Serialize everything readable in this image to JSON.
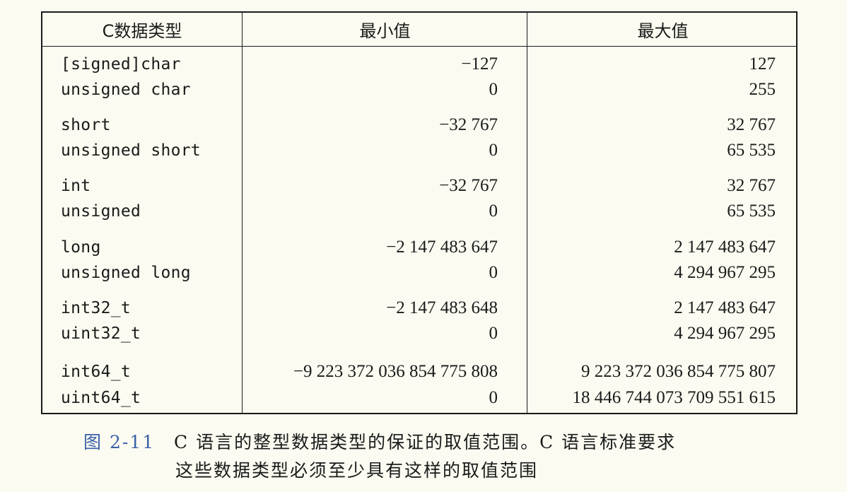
{
  "table": {
    "headers": [
      "C数据类型",
      "最小值",
      "最大值"
    ],
    "groups": [
      [
        {
          "type": "[signed]char",
          "min": "−127",
          "max": "127"
        },
        {
          "type": "unsigned char",
          "min": "0",
          "max": "255"
        }
      ],
      [
        {
          "type": "short",
          "min": "−32 767",
          "max": "32 767"
        },
        {
          "type": "unsigned short",
          "min": "0",
          "max": "65 535"
        }
      ],
      [
        {
          "type": "int",
          "min": "−32 767",
          "max": "32 767"
        },
        {
          "type": "unsigned",
          "min": "0",
          "max": "65 535"
        }
      ],
      [
        {
          "type": "long",
          "min": "−2 147 483 647",
          "max": "2 147 483 647"
        },
        {
          "type": "unsigned long",
          "min": "0",
          "max": "4 294 967 295"
        }
      ],
      [
        {
          "type": "int32_t",
          "min": "−2 147 483 648",
          "max": "2 147 483 647"
        },
        {
          "type": "uint32_t",
          "min": "0",
          "max": "4 294 967 295"
        }
      ],
      [
        {
          "type": "int64_t",
          "min": "−9 223 372 036 854 775 808",
          "max": "9 223 372 036 854 775 807"
        },
        {
          "type": "uint64_t",
          "min": "0",
          "max": "18 446 744 073 709 551 615"
        }
      ]
    ]
  },
  "caption": {
    "label": "图 2-11",
    "line1": "C 语言的整型数据类型的保证的取值范围。C 语言标准要求",
    "line2": "这些数据类型必须至少具有这样的取值范围"
  },
  "colors": {
    "figure_label": "#3a60a8",
    "background": "#fbfbf1",
    "text": "#1a1a1a"
  }
}
